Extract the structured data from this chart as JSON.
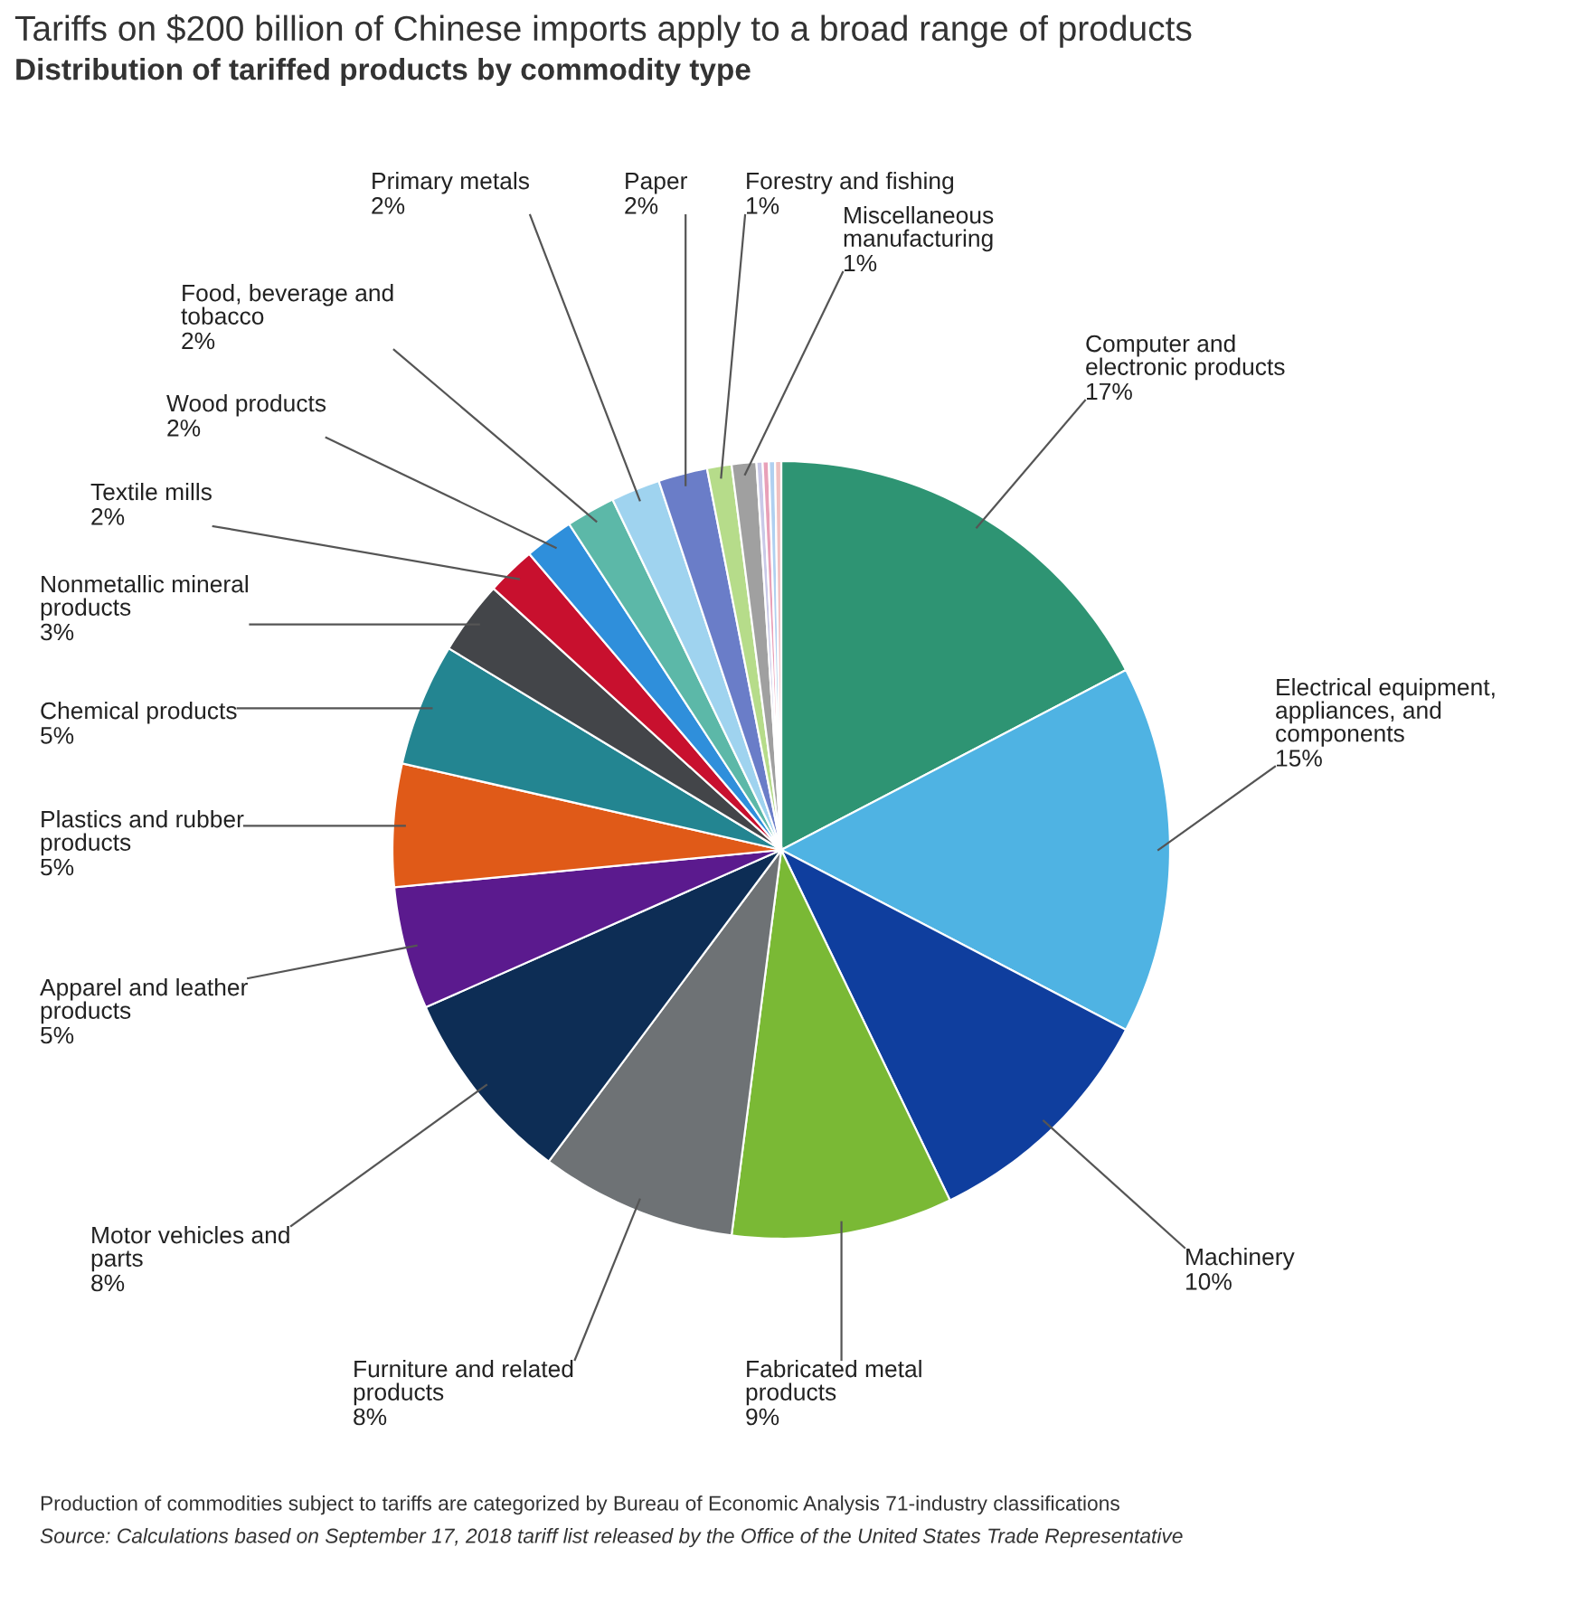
{
  "chart_data": {
    "type": "pie",
    "title": "Tariffs on $200 billion of Chinese imports apply to a broad range of products",
    "subtitle": "Distribution of tariffed products by commodity type",
    "categories": [
      "Computer and\nelectronic products",
      "Electrical equipment,\nappliances, and\ncomponents",
      "Machinery",
      "Fabricated metal\nproducts",
      "Furniture and related\nproducts",
      "Motor vehicles and\nparts",
      "Apparel and leather\nproducts",
      "Plastics and rubber\nproducts",
      "Chemical products",
      "Nonmetallic mineral\nproducts",
      "Textile mills",
      "Wood products",
      "Food, beverage and\ntobacco",
      "Primary metals",
      "Paper",
      "Forestry and fishing",
      "Miscellaneous\nmanufacturing",
      null,
      null,
      null,
      null
    ],
    "values": [
      17,
      15,
      10,
      9,
      8,
      8,
      5,
      5,
      5,
      3,
      2,
      2,
      2,
      2,
      2,
      1,
      1,
      0.25,
      0.25,
      0.25,
      0.25
    ],
    "value_labels": [
      "17%",
      "15%",
      "10%",
      "9%",
      "8%",
      "8%",
      "5%",
      "5%",
      "5%",
      "3%",
      "2%",
      "2%",
      "2%",
      "2%",
      "2%",
      "1%",
      "1%",
      null,
      null,
      null,
      null
    ],
    "colors": [
      "#2e9473",
      "#4fb3e3",
      "#0f3e9e",
      "#7ab935",
      "#6e7275",
      "#0d2d55",
      "#5b1a8e",
      "#e05a18",
      "#238591",
      "#434549",
      "#c8102e",
      "#2f8fdb",
      "#5cb8a8",
      "#9fd3ef",
      "#6a7dc8",
      "#b6dc8a",
      "#a0a0a0",
      "#c9c9e8",
      "#e8a0b8",
      "#b0d0f0",
      "#f0c0c0"
    ],
    "annotations": [
      "Production of commodities subject to tariffs are categorized by Bureau of Economic Analysis 71-industry classifications",
      "Source: Calculations based on September 17, 2018 tariff list released by the Office of the United States Trade Representative"
    ]
  }
}
